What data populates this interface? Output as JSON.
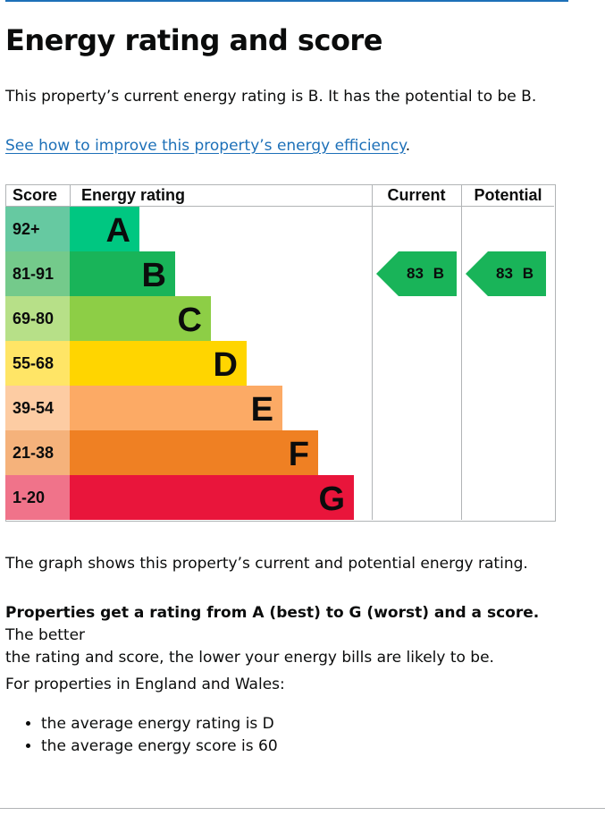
{
  "page": {
    "title": "Energy rating and score",
    "intro": "This property’s current energy rating is B. It has the potential to be B.",
    "improve_link": "See how to improve this property’s energy efficiency",
    "improve_link_suffix": ".",
    "graph_note": "The graph shows this property’s current and potential energy rating.",
    "rating_bold": "Properties get a rating from A (best) to G (worst) and a score.",
    "rating_rest_1": " The better",
    "rating_rest_2": "the rating and score, the lower your energy bills are likely to be.",
    "region_note": "For properties in England and Wales:",
    "averages": [
      "the average energy rating is D",
      "the average energy score is 60"
    ]
  },
  "epc_table": {
    "headers": {
      "score": "Score",
      "rating": "Energy rating",
      "current": "Current",
      "potential": "Potential"
    },
    "bands": [
      {
        "score": "92+",
        "letter": "A",
        "bar_color": "#00c781",
        "score_bg": "#66c9a1"
      },
      {
        "score": "81-91",
        "letter": "B",
        "bar_color": "#19b459",
        "score_bg": "#74ca8b"
      },
      {
        "score": "69-80",
        "letter": "C",
        "bar_color": "#8dce46",
        "score_bg": "#b7e088"
      },
      {
        "score": "55-68",
        "letter": "D",
        "bar_color": "#ffd500",
        "score_bg": "#ffe566"
      },
      {
        "score": "39-54",
        "letter": "E",
        "bar_color": "#fcaa65",
        "score_bg": "#fdcca3"
      },
      {
        "score": "21-38",
        "letter": "F",
        "bar_color": "#ef8023",
        "score_bg": "#f5b27b"
      },
      {
        "score": "1-20",
        "letter": "G",
        "bar_color": "#e9153b",
        "score_bg": "#f0738a"
      }
    ],
    "current": {
      "score": "83",
      "band": "B",
      "color": "#19b459"
    },
    "potential": {
      "score": "83",
      "band": "B",
      "color": "#19b459"
    }
  }
}
